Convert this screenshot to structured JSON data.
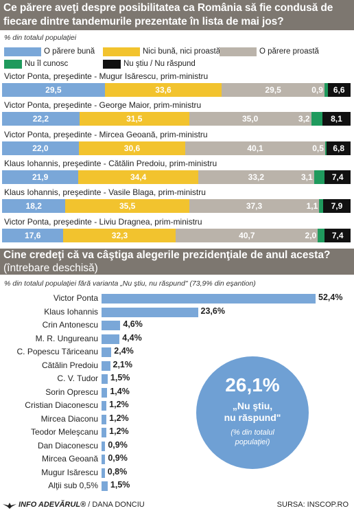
{
  "title": "Ce părere aveţi despre posibilitatea ca România să fie condusă de fiecare dintre tandemurile prezentate în lista de mai jos?",
  "subtitle1": "% din totalul populaţiei",
  "legend": [
    {
      "label": "O părere bună",
      "color": "#7aa7d8"
    },
    {
      "label": "Nici bună, nici proastă",
      "color": "#f2c32e"
    },
    {
      "label": "O părere proastă",
      "color": "#bab3aa"
    },
    {
      "label": "Nu îl cunosc",
      "color": "#1f9a5d"
    },
    {
      "label": "Nu ştiu / Nu răspund",
      "color": "#111111"
    }
  ],
  "tandem_labels": [
    "Victor Ponta, preşedinte - Mugur Isărescu, prim-ministru",
    "Victor Ponta, preşedinte - George Maior, prim-ministru",
    "Victor Ponta, preşedinte - Mircea Geoană, prim-ministru",
    "Klaus Iohannis, preşedinte - Cătălin Predoiu, prim-ministru",
    "Klaus Iohannis, preşedinte - Vasile Blaga, prim-ministru",
    "Victor Ponta, preşedinte - Liviu Dragnea, prim-ministru"
  ],
  "tandem_value_labels": [
    [
      "29,5",
      "33,6",
      "29,5",
      "0,9",
      "6,6"
    ],
    [
      "22,2",
      "31,5",
      "35,0",
      "3,2",
      "8,1"
    ],
    [
      "22,0",
      "30,6",
      "40,1",
      "0,5",
      "6,8"
    ],
    [
      "21,9",
      "34,4",
      "33,2",
      "3,1",
      "7,4"
    ],
    [
      "18,2",
      "35,5",
      "37,3",
      "1,1",
      "7,9"
    ],
    [
      "17,6",
      "32,3",
      "40,7",
      "2,0",
      "7,4"
    ]
  ],
  "section2_title": "Cine credeţi că va câştiga alegerile prezidenţiale de anul acesta?",
  "section2_note": "(întrebare deschisă)",
  "subtitle2": "% din totalul populaţiei fără varianta „Nu ştiu, nu răspund\" (73,9% din eşantion)",
  "rank_pct_labels": [
    "52,4%",
    "23,6%",
    "4,6%",
    "4,4%",
    "2,4%",
    "2,1%",
    "1,5%",
    "1,4%",
    "1,2%",
    "1,2%",
    "1,2%",
    "0,9%",
    "0,9%",
    "0,8%",
    "1,5%"
  ],
  "circle": {
    "value": "26,1%",
    "line1": "„Nu ştiu,",
    "line2": "nu răspund\"",
    "note1": "(% din totalul",
    "note2": "populaţiei)"
  },
  "footer": {
    "brand": "INFO ADEVĂRUL®",
    "author": "/ DANA DONCIU",
    "source": "SURSA: INSCOP.RO"
  },
  "chart_data": [
    {
      "type": "bar",
      "stacked": true,
      "orientation": "horizontal",
      "title": "Ce părere aveţi despre posibilitatea ca România să fie condusă de fiecare dintre tandemurile prezentate în lista de mai jos?",
      "unit_note": "% din totalul populaţiei",
      "categories": [
        "Victor Ponta, preşedinte - Mugur Isărescu, prim-ministru",
        "Victor Ponta, preşedinte - George Maior, prim-ministru",
        "Victor Ponta, preşedinte - Mircea Geoană, prim-ministru",
        "Klaus Iohannis, preşedinte - Cătălin Predoiu, prim-ministru",
        "Klaus Iohannis, preşedinte - Vasile Blaga, prim-ministru",
        "Victor Ponta, preşedinte - Liviu Dragnea, prim-ministru"
      ],
      "series": [
        {
          "name": "O părere bună",
          "color": "#7aa7d8",
          "values": [
            29.5,
            22.2,
            22.0,
            21.9,
            18.2,
            17.6
          ]
        },
        {
          "name": "Nici bună, nici proastă",
          "color": "#f2c32e",
          "values": [
            33.6,
            31.5,
            30.6,
            34.4,
            35.5,
            32.3
          ]
        },
        {
          "name": "O părere proastă",
          "color": "#bab3aa",
          "values": [
            29.5,
            35.0,
            40.1,
            33.2,
            37.3,
            40.7
          ]
        },
        {
          "name": "Nu îl cunosc",
          "color": "#1f9a5d",
          "values": [
            0.9,
            3.2,
            0.5,
            3.1,
            1.1,
            2.0
          ]
        },
        {
          "name": "Nu ştiu / Nu răspund",
          "color": "#111111",
          "values": [
            6.6,
            8.1,
            6.8,
            7.4,
            7.9,
            7.4
          ]
        }
      ],
      "legend_position": "top"
    },
    {
      "type": "bar",
      "orientation": "horizontal",
      "title": "Cine credeţi că va câştiga alegerile prezidenţiale de anul acesta?",
      "unit_note": "% din totalul populaţiei fără varianta „Nu ştiu, nu răspund\" (73,9% din eşantion)",
      "categories": [
        "Victor Ponta",
        "Klaus Iohannis",
        "Crin Antonescu",
        "M. R. Ungureanu",
        "C. Popescu Tăriceanu",
        "Cătălin Predoiu",
        "C. V. Tudor",
        "Sorin Oprescu",
        "Cristian Diaconescu",
        "Mircea Diaconu",
        "Teodor Meleşcanu",
        "Dan Diaconescu",
        "Mircea Geoană",
        "Mugur Isărescu",
        "Alţii sub 0,5%"
      ],
      "values": [
        52.4,
        23.6,
        4.6,
        4.4,
        2.4,
        2.1,
        1.5,
        1.4,
        1.2,
        1.2,
        1.2,
        0.9,
        0.9,
        0.8,
        1.5
      ],
      "color": "#7aa7d8",
      "annotation": {
        "value": 26.1,
        "label": "„Nu ştiu, nu răspund\"",
        "note": "(% din totalul populaţiei)"
      }
    }
  ]
}
